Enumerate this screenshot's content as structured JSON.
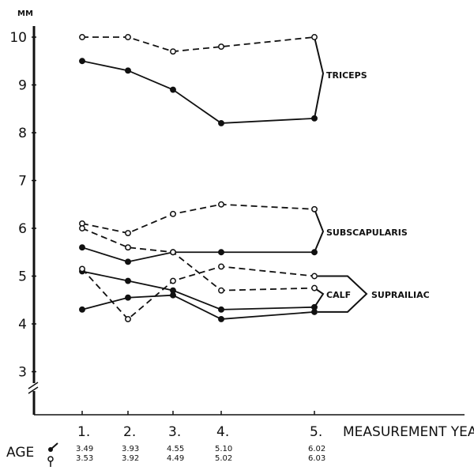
{
  "chart_data": {
    "type": "line",
    "title": "",
    "ylabel": "MM",
    "xlabel": "MEASUREMENT YEARS",
    "ylim": [
      3,
      10
    ],
    "yticks": [
      "3",
      "4",
      "5",
      "6",
      "7",
      "8",
      "9",
      "10"
    ],
    "categories": [
      "1.",
      "2.",
      "3.",
      "4.",
      "5."
    ],
    "age_label": "AGE",
    "age_male": [
      "3.49",
      "3.93",
      "4.55",
      "5.10",
      "6.02"
    ],
    "age_female": [
      "3.53",
      "3.92",
      "4.49",
      "5.02",
      "6.03"
    ],
    "series": [
      {
        "name": "Triceps female",
        "group": "TRICEPS",
        "style": "dashed",
        "values": [
          10.0,
          10.0,
          9.7,
          9.8,
          10.0
        ]
      },
      {
        "name": "Triceps male",
        "group": "TRICEPS",
        "style": "solid",
        "values": [
          9.5,
          9.3,
          8.9,
          8.2,
          8.3
        ]
      },
      {
        "name": "Subscapularis female",
        "group": "SUBSCAPULARIS",
        "style": "dashed",
        "values": [
          6.1,
          5.9,
          6.3,
          6.5,
          6.4
        ]
      },
      {
        "name": "Subscapularis male",
        "group": "SUBSCAPULARIS",
        "style": "solid",
        "values": [
          5.6,
          5.3,
          5.5,
          5.5,
          5.5
        ]
      },
      {
        "name": "Calf female",
        "group": "CALF",
        "style": "dashed",
        "values": [
          6.0,
          5.6,
          5.5,
          4.7,
          4.75
        ]
      },
      {
        "name": "Calf male",
        "group": "CALF",
        "style": "solid",
        "values": [
          5.1,
          4.9,
          4.7,
          4.3,
          4.35
        ]
      },
      {
        "name": "Suprailiac female",
        "group": "SUPRAILIAC",
        "style": "dashed",
        "values": [
          5.15,
          4.1,
          4.9,
          5.2,
          5.0
        ]
      },
      {
        "name": "Suprailiac male",
        "group": "SUPRAILIAC",
        "style": "solid",
        "values": [
          4.3,
          4.55,
          4.6,
          4.1,
          4.25
        ]
      }
    ],
    "group_labels": [
      "TRICEPS",
      "SUBSCAPULARIS",
      "CALF",
      "SUPRAILIAC"
    ],
    "grid": false,
    "legend": "none"
  }
}
